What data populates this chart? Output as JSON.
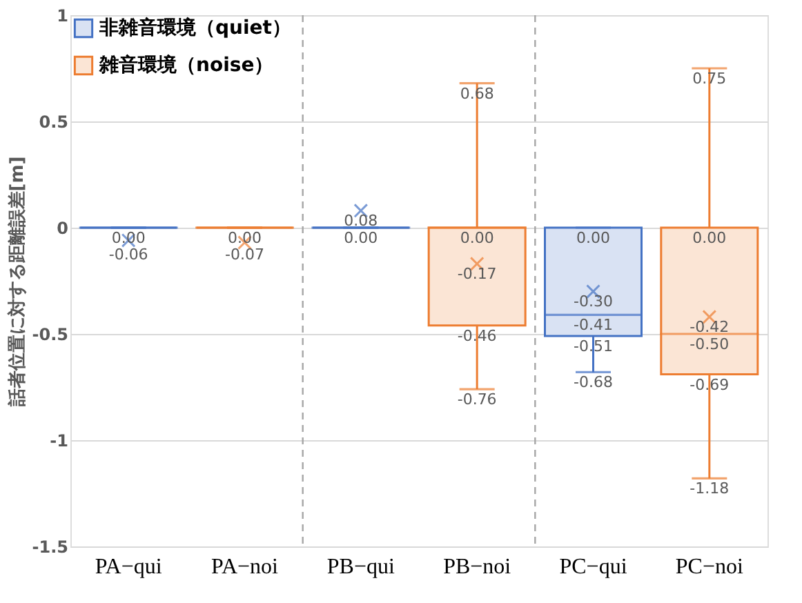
{
  "chart_data": {
    "type": "box",
    "categories": [
      "PA−qui",
      "PA−noi",
      "PB−qui",
      "PB−noi",
      "PC−qui",
      "PC−noi"
    ],
    "ylabel": "話者位置に対する距離誤差[m]",
    "ylim": [
      -1.5,
      1
    ],
    "yticks": [
      -1.5,
      -1,
      -0.5,
      0,
      0.5,
      1
    ],
    "grid": "y",
    "legend": "top left",
    "annotations": [
      {
        "text": "0.00",
        "x": "PA−qui",
        "y": 0
      },
      {
        "text": "-0.06",
        "x": "PA−qui",
        "y": -0.06
      },
      {
        "text": "0.00",
        "x": "PA−noi",
        "y": 0
      },
      {
        "text": "-0.07",
        "x": "PA−noi",
        "y": -0.07
      },
      {
        "text": "0.08",
        "x": "PB−qui",
        "y": 0.08
      },
      {
        "text": "0.00",
        "x": "PB−qui",
        "y": 0
      },
      {
        "text": "0.68",
        "x": "PB−noi",
        "y": 0.68
      },
      {
        "text": "0.00",
        "x": "PB−noi",
        "y": 0
      },
      {
        "text": "-0.17",
        "x": "PB−noi",
        "y": -0.17
      },
      {
        "text": "-0.46",
        "x": "PB−noi",
        "y": -0.46
      },
      {
        "text": "-0.76",
        "x": "PB−noi",
        "y": -0.76
      },
      {
        "text": "0.00",
        "x": "PC−qui",
        "y": 0
      },
      {
        "text": "-0.30",
        "x": "PC−qui",
        "y": -0.3
      },
      {
        "text": "-0.41",
        "x": "PC−qui",
        "y": -0.41
      },
      {
        "text": "-0.51",
        "x": "PC−qui",
        "y": -0.51
      },
      {
        "text": "-0.68",
        "x": "PC−qui",
        "y": -0.68
      },
      {
        "text": "0.75",
        "x": "PC−noi",
        "y": 0.75
      },
      {
        "text": "0.00",
        "x": "PC−noi",
        "y": 0
      },
      {
        "text": "-0.42",
        "x": "PC−noi",
        "y": -0.42
      },
      {
        "text": "-0.50",
        "x": "PC−noi",
        "y": -0.5
      },
      {
        "text": "-0.69",
        "x": "PC−noi",
        "y": -0.69
      },
      {
        "text": "-1.18",
        "x": "PC−noi",
        "y": -1.18
      }
    ],
    "series": [
      {
        "name": "非雑音環境（quiet）",
        "color": "#4472c4",
        "boxes": [
          {
            "low": 0,
            "q1": 0,
            "median": 0,
            "q3": 0,
            "high": 0
          },
          null,
          {
            "low": 0,
            "q1": 0,
            "median": 0,
            "q3": 0,
            "high": 0
          },
          null,
          {
            "low": -0.68,
            "q1": -0.51,
            "median": -0.41,
            "q3": 0,
            "high": 0
          },
          null
        ]
      },
      {
        "name": "雑音環境（noise）",
        "color": "#ed7d31",
        "boxes": [
          null,
          {
            "low": 0,
            "q1": 0,
            "median": 0,
            "q3": 0,
            "high": 0
          },
          null,
          {
            "low": -0.76,
            "q1": -0.46,
            "median": 0,
            "q3": 0,
            "high": 0.68
          },
          null,
          {
            "low": -1.18,
            "q1": -0.69,
            "median": -0.5,
            "q3": 0,
            "high": 0.75
          }
        ]
      },
      {
        "type": "scatter",
        "marker": "cross",
        "color": "#4472c4",
        "x": [
          "PA−qui",
          "PB−qui",
          "PC−qui"
        ],
        "values": [
          -0.06,
          0.08,
          -0.3
        ]
      },
      {
        "type": "scatter",
        "marker": "cross",
        "color": "#ed7d31",
        "x": [
          "PA−noi",
          "PB−noi",
          "PC−noi"
        ],
        "values": [
          -0.07,
          -0.17,
          -0.42
        ]
      }
    ]
  }
}
